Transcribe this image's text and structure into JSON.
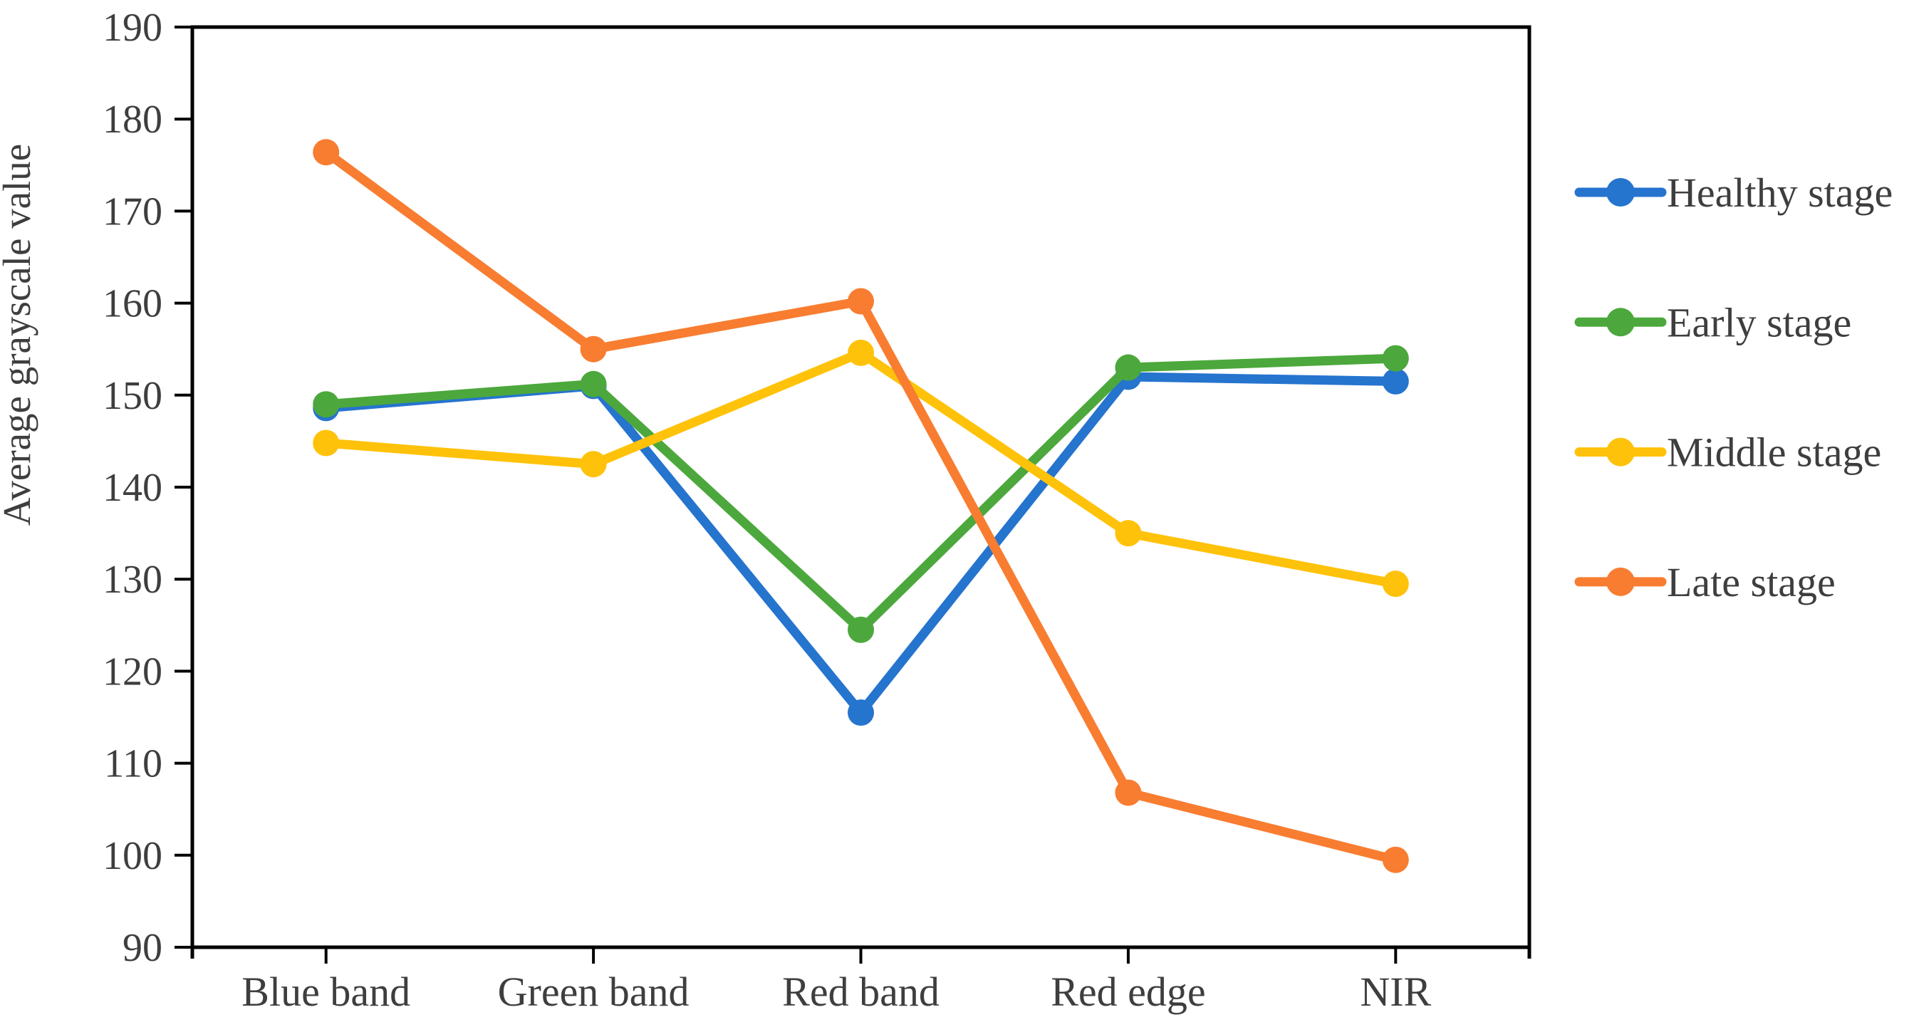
{
  "figure": {
    "background": "#ffffff",
    "axis_color": "#000000",
    "text_color": "#3e3e3e"
  },
  "chart_data": {
    "type": "line",
    "title": "",
    "xlabel": "",
    "ylabel": "Average grayscale value",
    "ylim": [
      90,
      190
    ],
    "ytick_step": 10,
    "yticks": [
      190,
      180,
      170,
      160,
      150,
      140,
      130,
      120,
      110,
      100,
      90
    ],
    "grid": false,
    "legend_position": "right",
    "marker": "circle",
    "categories": [
      "Blue band",
      "Green band",
      "Red band",
      "Red edge",
      "NIR"
    ],
    "series": [
      {
        "name": "Healthy stage",
        "color": "#2574CE",
        "values": [
          148.6,
          151.0,
          115.5,
          152.0,
          151.5
        ]
      },
      {
        "name": "Early stage",
        "color": "#4CA83C",
        "values": [
          149.0,
          151.2,
          124.5,
          153.0,
          154.0
        ]
      },
      {
        "name": "Middle stage",
        "color": "#FFC20A",
        "values": [
          144.8,
          142.5,
          154.6,
          135.0,
          129.5
        ]
      },
      {
        "name": "Late stage",
        "color": "#F87D31",
        "values": [
          176.4,
          155.0,
          160.2,
          106.8,
          99.5
        ]
      }
    ]
  }
}
